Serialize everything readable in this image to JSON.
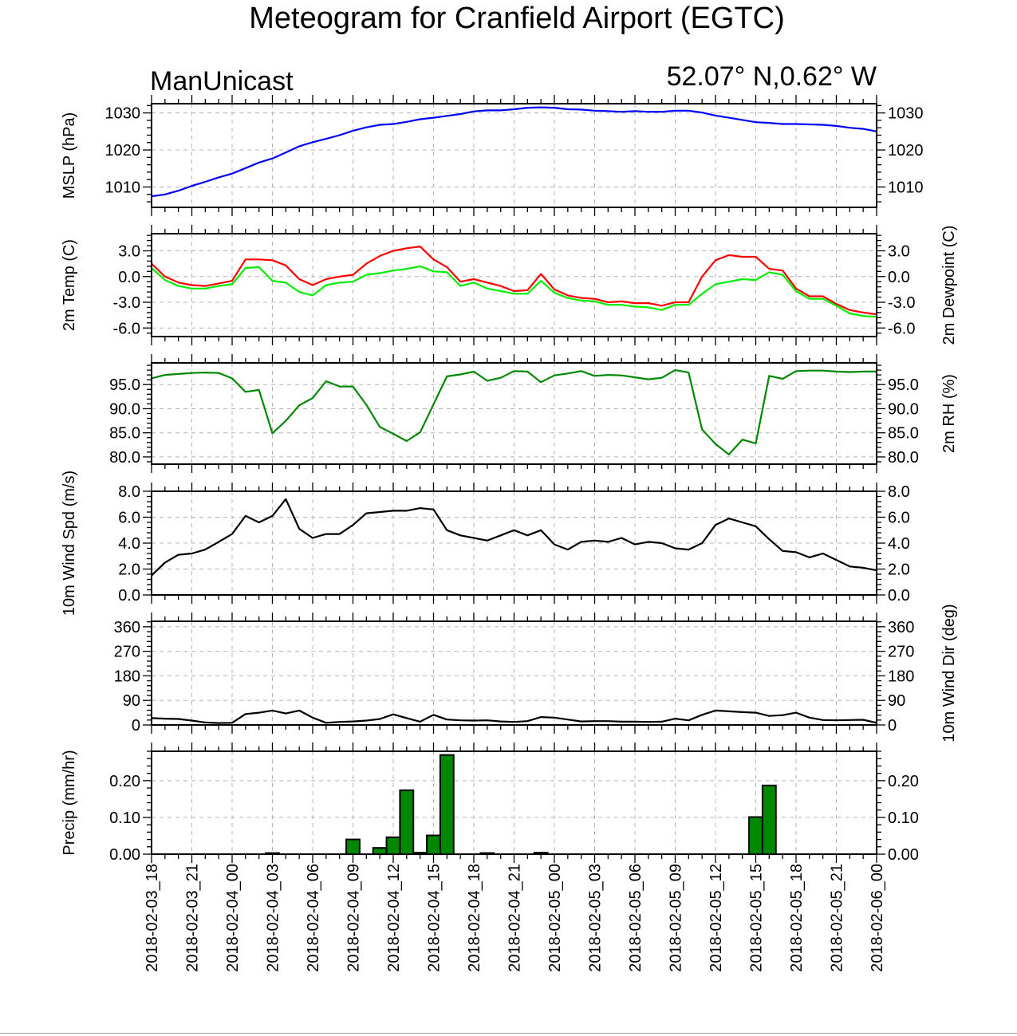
{
  "title": "Meteogram for Cranfield Airport (EGTC)",
  "left_label": "ManUnicast",
  "right_label": "52.07° N,0.62° W",
  "time_labels": [
    "2018-02-03_18",
    "2018-02-03_21",
    "2018-02-04_00",
    "2018-02-04_03",
    "2018-02-04_06",
    "2018-02-04_09",
    "2018-02-04_12",
    "2018-02-04_15",
    "2018-02-04_18",
    "2018-02-04_21",
    "2018-02-05_00",
    "2018-02-05_03",
    "2018-02-05_06",
    "2018-02-05_09",
    "2018-02-05_12",
    "2018-02-05_15",
    "2018-02-05_18",
    "2018-02-05_21",
    "2018-02-06_00"
  ],
  "colors": {
    "mslp": "#0000ff",
    "temp": "#ff0000",
    "dewpoint": "#00ee00",
    "rh": "#008800",
    "wind": "#000000",
    "precip_fill": "#008800",
    "grid": "#b4b4b4"
  },
  "chart_data": [
    {
      "type": "line",
      "ylabel_left": "MSLP (hPa)",
      "ylabel_right": "",
      "x_hours": "0 to 54 hourly from 2018-02-03_18",
      "ylim": [
        1004.5,
        1032.5
      ],
      "ticks": [
        1010,
        1020,
        1030
      ],
      "tick_labels": [
        "1010",
        "1020",
        "1030"
      ],
      "series": [
        {
          "color_key": "mslp",
          "values": [
            1007.5,
            1008,
            1009,
            1010.3,
            1011.4,
            1012.6,
            1013.6,
            1015.1,
            1016.6,
            1017.7,
            1019.3,
            1021,
            1022.1,
            1023,
            1024,
            1025.2,
            1026.1,
            1026.8,
            1027,
            1027.6,
            1028.3,
            1028.7,
            1029.2,
            1029.7,
            1030.4,
            1030.7,
            1030.7,
            1031,
            1031.4,
            1031.5,
            1031.4,
            1031,
            1030.9,
            1030.6,
            1030.5,
            1030.3,
            1030.5,
            1030.3,
            1030.3,
            1030.6,
            1030.6,
            1030.1,
            1029.3,
            1028.7,
            1028.1,
            1027.5,
            1027.3,
            1027,
            1027,
            1026.9,
            1026.8,
            1026.5,
            1026,
            1025.7,
            1025
          ]
        }
      ],
      "grid": true
    },
    {
      "type": "line",
      "ylabel_left": "2m Temp (C)",
      "ylabel_right": "2m Dewpoint (C)",
      "ylim": [
        -7,
        5
      ],
      "ticks": [
        -6,
        -3,
        0,
        3
      ],
      "tick_labels": [
        "-6.0",
        "-3.0",
        "0.0",
        "3.0"
      ],
      "series": [
        {
          "color_key": "temp",
          "values": [
            1.5,
            0,
            -0.7,
            -1,
            -1.1,
            -0.8,
            -0.5,
            2,
            2,
            1.9,
            1.3,
            -0.3,
            -1,
            -0.3,
            0,
            0.2,
            1.5,
            2.4,
            3,
            3.3,
            3.5,
            2,
            1.1,
            -0.6,
            -0.3,
            -0.7,
            -1.1,
            -1.7,
            -1.6,
            0.3,
            -1.5,
            -2.2,
            -2.5,
            -2.6,
            -3,
            -2.9,
            -3.1,
            -3.1,
            -3.4,
            -3,
            -3,
            0,
            1.9,
            2.5,
            2.3,
            2.3,
            0.9,
            0.7,
            -1.4,
            -2.3,
            -2.3,
            -3.2,
            -3.9,
            -4.2,
            -4.4
          ]
        },
        {
          "color_key": "dewpoint",
          "values": [
            1,
            -0.4,
            -1.1,
            -1.4,
            -1.4,
            -1.1,
            -0.9,
            1,
            1.1,
            -0.5,
            -0.7,
            -1.8,
            -2.2,
            -1,
            -0.7,
            -0.6,
            0.2,
            0.4,
            0.7,
            0.9,
            1.2,
            0.6,
            0.5,
            -1.1,
            -0.7,
            -1.4,
            -1.7,
            -2,
            -2,
            -0.5,
            -1.9,
            -2.5,
            -2.8,
            -2.9,
            -3.3,
            -3.3,
            -3.5,
            -3.6,
            -3.9,
            -3.3,
            -3.3,
            -2,
            -0.9,
            -0.6,
            -0.3,
            -0.4,
            0.5,
            0.2,
            -1.7,
            -2.6,
            -2.6,
            -3.4,
            -4.3,
            -4.6,
            -4.7
          ]
        }
      ],
      "grid": true
    },
    {
      "type": "line",
      "ylabel_left": "",
      "ylabel_right": "2m RH (%)",
      "ylim": [
        78.5,
        99.5
      ],
      "ticks": [
        80,
        85,
        90,
        95
      ],
      "tick_labels": [
        "80.0",
        "85.0",
        "90.0",
        "95.0"
      ],
      "series": [
        {
          "color_key": "rh",
          "values": [
            96.3,
            97,
            97.2,
            97.4,
            97.5,
            97.4,
            96.3,
            93.5,
            93.9,
            84.9,
            87.5,
            90.7,
            92.2,
            95.7,
            94.6,
            94.6,
            90.8,
            86.2,
            84.8,
            83.3,
            85.1,
            90.9,
            96.7,
            97.1,
            97.7,
            95.8,
            96.4,
            97.8,
            97.7,
            95.5,
            96.9,
            97.3,
            97.8,
            96.8,
            97,
            96.9,
            96.5,
            96.1,
            96.4,
            98,
            97.5,
            85.7,
            82.7,
            80.5,
            83.6,
            82.8,
            96.8,
            96.2,
            97.8,
            97.9,
            97.9,
            97.7,
            97.6,
            97.7,
            97.7
          ]
        }
      ],
      "grid": true
    },
    {
      "type": "line",
      "ylabel_left": "10m Wind Spd (m/s)",
      "ylabel_right": "",
      "ylim": [
        0,
        8
      ],
      "ticks": [
        0,
        2,
        4,
        6,
        8
      ],
      "tick_labels": [
        "0.0",
        "2.0",
        "4.0",
        "6.0",
        "8.0"
      ],
      "series": [
        {
          "color_key": "wind",
          "values": [
            1.5,
            2.5,
            3.1,
            3.2,
            3.5,
            4.1,
            4.7,
            6.1,
            5.6,
            6.1,
            7.4,
            5.1,
            4.4,
            4.7,
            4.7,
            5.4,
            6.3,
            6.4,
            6.5,
            6.5,
            6.7,
            6.6,
            5,
            4.6,
            4.4,
            4.2,
            4.6,
            5,
            4.6,
            5,
            3.9,
            3.5,
            4.1,
            4.2,
            4.1,
            4.4,
            3.9,
            4.1,
            4,
            3.6,
            3.5,
            4,
            5.4,
            5.9,
            5.6,
            5.3,
            4.3,
            3.4,
            3.3,
            2.9,
            3.2,
            2.7,
            2.2,
            2.1,
            1.9
          ]
        }
      ],
      "grid": true
    },
    {
      "type": "line",
      "ylabel_left": "",
      "ylabel_right": "10m Wind Dir (deg)",
      "ylim": [
        0,
        380
      ],
      "ticks": [
        0,
        90,
        180,
        270,
        360
      ],
      "tick_labels": [
        "0",
        "90",
        "180",
        "270",
        "360"
      ],
      "series": [
        {
          "color_key": "wind",
          "values": [
            25,
            23,
            22,
            16,
            9,
            7,
            8,
            40,
            45,
            53,
            42,
            53,
            27,
            8,
            11,
            13,
            16,
            22,
            39,
            25,
            12,
            37,
            20,
            17,
            16,
            17,
            13,
            11,
            14,
            29,
            27,
            20,
            13,
            14,
            14,
            12,
            12,
            11,
            12,
            23,
            17,
            37,
            53,
            50,
            47,
            45,
            33,
            36,
            45,
            27,
            18,
            17,
            18,
            19,
            8
          ]
        }
      ],
      "grid": true
    },
    {
      "type": "bar",
      "ylabel_left": "Precip (mm/hr)",
      "ylabel_right": "",
      "ylim": [
        0,
        0.28
      ],
      "ticks": [
        0,
        0.1,
        0.2
      ],
      "tick_labels": [
        "0.00",
        "0.10",
        "0.20"
      ],
      "values": [
        0,
        0,
        0,
        0,
        0,
        0,
        0,
        0,
        0,
        0.003,
        0,
        0,
        0,
        0,
        0,
        0.04,
        0,
        0.017,
        0.046,
        0.174,
        0.004,
        0.051,
        0.27,
        0,
        0,
        0.003,
        0,
        0,
        0,
        0.004,
        0,
        0,
        0,
        0,
        0,
        0,
        0,
        0,
        0,
        0,
        0,
        0,
        0,
        0,
        0,
        0.101,
        0.187,
        0,
        0,
        0,
        0,
        0,
        0,
        0,
        0
      ],
      "grid": true
    }
  ]
}
